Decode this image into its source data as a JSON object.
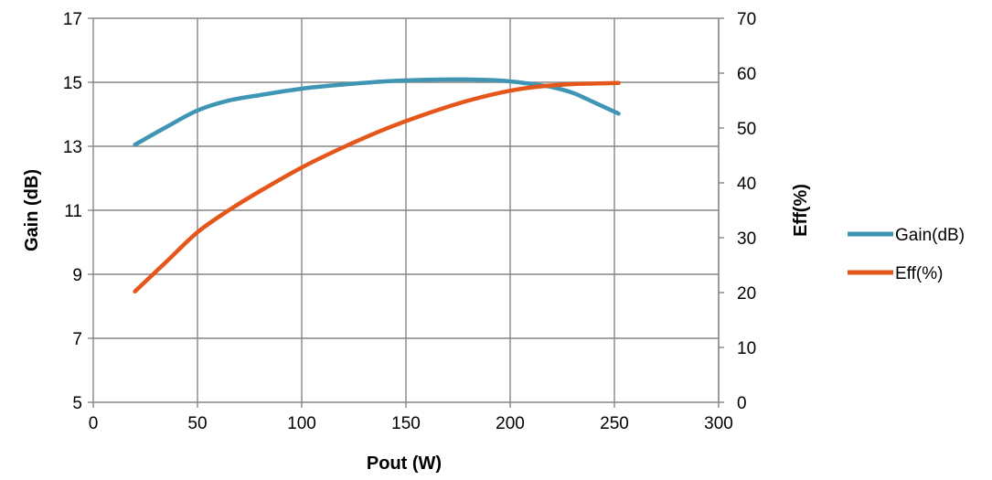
{
  "chart_data": {
    "type": "line",
    "title": "",
    "xlabel": "Pout (W)",
    "ylabel_left": "Gain (dB)",
    "ylabel_right": "Eff(%)",
    "xlim": [
      0,
      300
    ],
    "ylim_left": [
      5,
      17
    ],
    "ylim_right": [
      0,
      70
    ],
    "x_ticks": [
      0,
      50,
      100,
      150,
      200,
      250,
      300
    ],
    "y_left_ticks": [
      5,
      7,
      9,
      11,
      13,
      15,
      17
    ],
    "y_right_ticks": [
      0,
      10,
      20,
      30,
      40,
      50,
      60,
      70
    ],
    "x_tick_labels": [
      "0",
      "50",
      "100",
      "150",
      "200",
      "250",
      "300"
    ],
    "y_left_tick_labels": [
      "5",
      "7",
      "9",
      "11",
      "13",
      "15",
      "17"
    ],
    "y_right_tick_labels": [
      "0",
      "10",
      "20",
      "30",
      "40",
      "50",
      "60",
      "70"
    ],
    "grid": true,
    "legend_placement": "right",
    "series": [
      {
        "name": "Gain(dB)",
        "axis": "left",
        "color": "#3E96B4",
        "x": [
          20,
          35,
          50,
          65,
          80,
          100,
          120,
          140,
          160,
          175,
          190,
          200,
          210,
          220,
          230,
          240,
          252
        ],
        "y": [
          13.05,
          13.6,
          14.12,
          14.43,
          14.6,
          14.8,
          14.93,
          15.03,
          15.08,
          15.09,
          15.07,
          15.03,
          14.95,
          14.85,
          14.67,
          14.38,
          14.02
        ]
      },
      {
        "name": "Eff(%)",
        "axis": "right",
        "color": "#E5561A",
        "x": [
          20,
          35,
          50,
          65,
          80,
          100,
          120,
          140,
          160,
          180,
          200,
          215,
          230,
          240,
          252
        ],
        "y": [
          20.2,
          25.6,
          31.0,
          35.0,
          38.5,
          42.8,
          46.5,
          49.8,
          52.6,
          55.0,
          56.8,
          57.6,
          58.0,
          58.1,
          58.2
        ]
      }
    ]
  }
}
